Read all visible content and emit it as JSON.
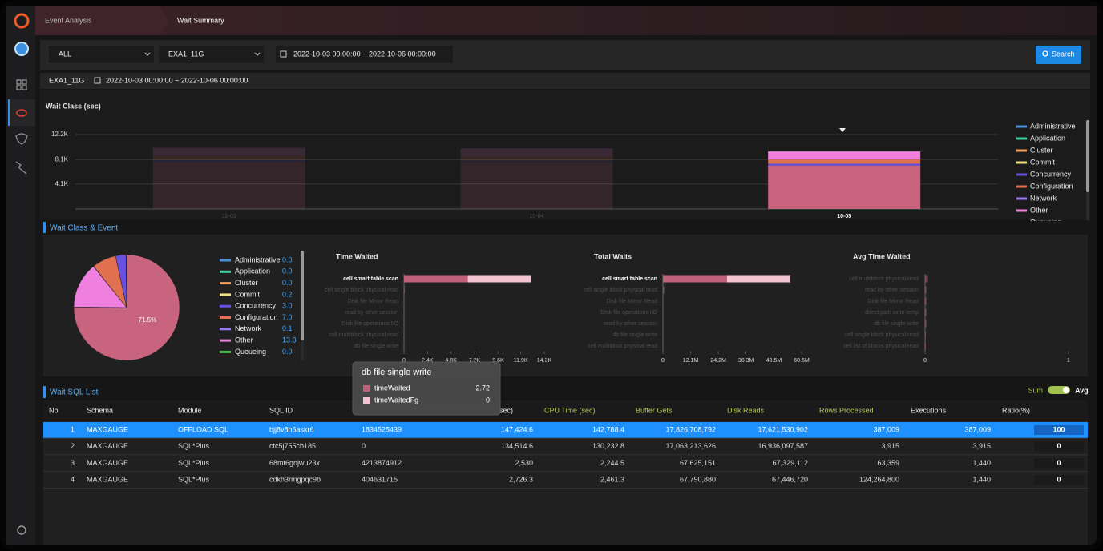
{
  "breadcrumbs": [
    "Event Analysis",
    "Wait Summary"
  ],
  "filters": {
    "scope": "ALL",
    "instance": "EXA1_11G",
    "date_from": "2022-10-03 00:00:00",
    "date_separator": "~",
    "date_to": "2022-10-06 00:00:00",
    "search_button": "Search"
  },
  "summary": {
    "instance": "EXA1_11G",
    "date_range": "2022-10-03 00:00:00 ~ 2022-10-06 00:00:00"
  },
  "wait_class_chart": {
    "type": "bar",
    "stacked": true,
    "title": "Wait Class (sec)",
    "categories": [
      "10-03",
      "10-04",
      "10-05"
    ],
    "selected_category": "10-05",
    "ylim": [
      0,
      12200
    ],
    "yticks": [
      {
        "value": 4100,
        "label": "4.1K"
      },
      {
        "value": 8100,
        "label": "8.1K"
      },
      {
        "value": 12200,
        "label": "12.2K"
      }
    ],
    "grid": true,
    "series": [
      {
        "color": "#c8647e",
        "values": [
          7700,
          7600,
          7100
        ]
      },
      {
        "name": "Administrative",
        "color": "#4a90d9",
        "values": [
          0,
          0,
          0
        ]
      },
      {
        "name": "Application",
        "color": "#3ecfa0",
        "values": [
          0,
          0,
          0
        ]
      },
      {
        "name": "Cluster",
        "color": "#f0a060",
        "values": [
          0,
          0,
          0
        ]
      },
      {
        "name": "Commit",
        "color": "#f0e080",
        "values": [
          20,
          20,
          20
        ]
      },
      {
        "name": "Concurrency",
        "color": "#6a50e0",
        "values": [
          300,
          300,
          300
        ]
      },
      {
        "name": "Configuration",
        "color": "#e07050",
        "values": [
          700,
          700,
          700
        ]
      },
      {
        "name": "Network",
        "color": "#9a7af0",
        "values": [
          10,
          10,
          10
        ]
      },
      {
        "name": "Other",
        "color": "#f080e0",
        "values": [
          1300,
          1300,
          1300
        ]
      },
      {
        "name": "Queueing",
        "color": "#40c040",
        "values": [
          0,
          0,
          0
        ]
      }
    ]
  },
  "wait_class_event_title": "Wait Class & Event",
  "pie": {
    "type": "pie",
    "main_value": 71.5,
    "main_label": "71.5%",
    "main_color": "#c8647e",
    "categories": [
      "Administrative",
      "Application",
      "Cluster",
      "Commit",
      "Concurrency",
      "Configuration",
      "Network",
      "Other",
      "Queueing"
    ],
    "colors": [
      "#4a90d9",
      "#3ecfa0",
      "#f0a060",
      "#f0e080",
      "#6a50e0",
      "#e07050",
      "#9a7af0",
      "#f080e0",
      "#40c040"
    ],
    "values": [
      0,
      0,
      0,
      0.2,
      3,
      7,
      0.1,
      13.3,
      0
    ],
    "value_labels": [
      "0.0",
      "0.0",
      "0.0",
      "0.2",
      "3.0",
      "7.0",
      "0.1",
      "13.3",
      "0.0"
    ]
  },
  "event_charts": [
    {
      "type": "hbar",
      "stacked": true,
      "title": "Time Waited",
      "categories": [
        "cell smart table scan",
        "cell single block physical read",
        "Disk file Mirror Read",
        "read by other session",
        "Disk file operations I/O",
        "cell multiblock physical read",
        "db file single write"
      ],
      "series": [
        {
          "name": "timeWaited",
          "color": "#c0607a",
          "values": [
            6500,
            40,
            5,
            3,
            3,
            2,
            2.72
          ]
        },
        {
          "name": "timeWaitedFg",
          "color": "#f2c4d2",
          "values": [
            6450,
            20,
            0,
            0,
            0,
            0,
            0
          ]
        }
      ],
      "xlim": [
        0,
        14300
      ],
      "xticks": [
        0,
        {
          "value": 2400,
          "label": "2.4K"
        },
        {
          "value": 4800,
          "label": "4.8K"
        },
        {
          "value": 7200,
          "label": "7.2K"
        },
        {
          "value": 9600,
          "label": "9.6K"
        },
        {
          "value": 11900,
          "label": "11.9K"
        },
        {
          "value": 14300,
          "label": "14.3K"
        }
      ]
    },
    {
      "type": "hbar",
      "stacked": true,
      "title": "Total Waits",
      "categories": [
        "cell smart table scan",
        "cell single block physical read",
        "Disk file Mirror Read",
        "Disk file operations I/O",
        "read by other session",
        "db file single write",
        "cell multiblock physical read"
      ],
      "series": [
        {
          "color": "#c0607a",
          "values": [
            28000000,
            300000,
            10000,
            5000,
            5000,
            100,
            1000
          ]
        },
        {
          "color": "#f2c4d2",
          "values": [
            27700000,
            200000,
            0,
            0,
            0,
            0,
            0
          ]
        }
      ],
      "xlim": [
        0,
        60600000
      ],
      "xticks": [
        0,
        {
          "value": 12100000,
          "label": "12.1M"
        },
        {
          "value": 24200000,
          "label": "24.2M"
        },
        {
          "value": 36300000,
          "label": "36.3M"
        },
        {
          "value": 48500000,
          "label": "48.5M"
        },
        {
          "value": 60600000,
          "label": "60.6M"
        }
      ]
    },
    {
      "type": "hbar",
      "stacked": true,
      "title": "Avg Time Waited",
      "categories": [
        "cell multiblock physical read",
        "read by other session",
        "Disk file Mirror Read",
        "direct path write temp",
        "db file single write",
        "cell single block physical read",
        "cell list of blocks physical read"
      ],
      "series": [
        {
          "color": "#c0607a",
          "values": [
            0.02,
            0.01,
            0.01,
            0.01,
            0.01,
            0.005,
            0.005
          ]
        }
      ],
      "xlim": [
        0,
        1
      ],
      "xticks": [
        0,
        1
      ]
    }
  ],
  "tooltip": {
    "title": "db file single write",
    "rows": [
      {
        "name": "timeWaited",
        "value": 2.72
      },
      {
        "name": "timeWaitedFg",
        "value": 0
      }
    ]
  },
  "sql_list": {
    "title": "Wait SQL List",
    "toggle": [
      "Sum",
      "Avg"
    ],
    "columns": [
      "No",
      "Schema",
      "Module",
      "SQL ID",
      null,
      "sec)",
      "CPU Time (sec)",
      "Buffer Gets",
      "Disk Reads",
      "Rows Processed",
      "Executions",
      "Ratio(%)"
    ],
    "rows": [
      [
        1,
        "MAXGAUGE",
        "OFFLOAD SQL",
        "bjj8v8h6askr6",
        1834525439,
        "147,424.6",
        "142,788.4",
        "17,826,708,792",
        "17,621,530,902",
        "387,009",
        "387,009",
        100
      ],
      [
        2,
        "MAXGAUGE",
        "SQL*Plus",
        "ctc5j755cb185",
        0,
        "134,514.6",
        "130,232.8",
        "17,063,213,626",
        "16,936,097,587",
        "3,915",
        "3,915",
        0
      ],
      [
        3,
        "MAXGAUGE",
        "SQL*Plus",
        "68mt6gnjwu23x",
        4213874912,
        "2,530",
        "2,244.5",
        "67,625,151",
        "67,329,112",
        "63,359",
        "1,440",
        0
      ],
      [
        4,
        "MAXGAUGE",
        "SQL*Plus",
        "cdkh3rmgpqc9b",
        404631715,
        "2,726.3",
        "2,461.3",
        "67,790,880",
        "67,446,720",
        "124,264,800",
        "1,440",
        0
      ]
    ]
  }
}
